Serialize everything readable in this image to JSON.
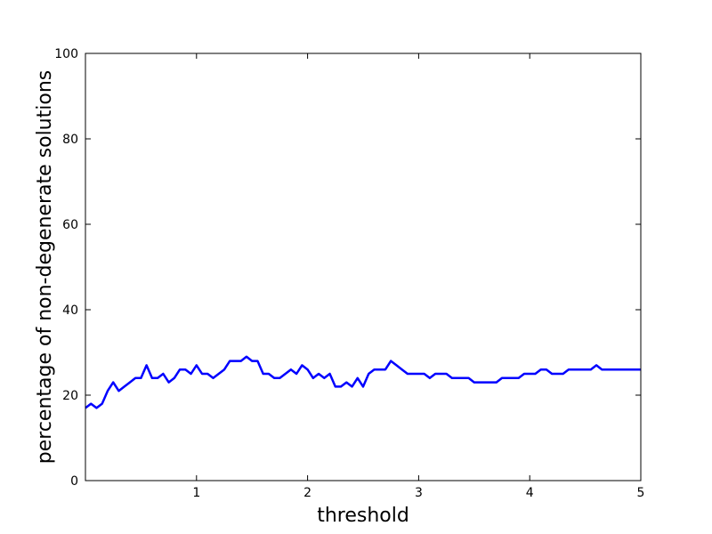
{
  "chart_data": {
    "type": "line",
    "xlabel": "threshold",
    "ylabel": "percentage of non-degenerate solutions",
    "xlim": [
      0,
      5
    ],
    "ylim": [
      0,
      100
    ],
    "xticks": [
      1,
      2,
      3,
      4,
      5
    ],
    "xtick_labels": [
      "1",
      "2",
      "3",
      "4",
      "5"
    ],
    "yticks": [
      0,
      20,
      40,
      60,
      80,
      100
    ],
    "ytick_labels": [
      "0",
      "20",
      "40",
      "60",
      "80",
      "100"
    ],
    "grid": false,
    "series": [
      {
        "color": "#0000ff",
        "x": [
          0.0,
          0.05,
          0.1,
          0.15,
          0.2,
          0.25,
          0.3,
          0.35,
          0.4,
          0.45,
          0.5,
          0.55,
          0.6,
          0.65,
          0.7,
          0.75,
          0.8,
          0.85,
          0.9,
          0.95,
          1.0,
          1.05,
          1.1,
          1.15,
          1.2,
          1.25,
          1.3,
          1.35,
          1.4,
          1.45,
          1.5,
          1.55,
          1.6,
          1.65,
          1.7,
          1.75,
          1.8,
          1.85,
          1.9,
          1.95,
          2.0,
          2.05,
          2.1,
          2.15,
          2.2,
          2.25,
          2.3,
          2.35,
          2.4,
          2.45,
          2.5,
          2.55,
          2.6,
          2.65,
          2.7,
          2.75,
          2.8,
          2.85,
          2.9,
          2.95,
          3.0,
          3.05,
          3.1,
          3.15,
          3.2,
          3.25,
          3.3,
          3.35,
          3.4,
          3.45,
          3.5,
          3.55,
          3.6,
          3.65,
          3.7,
          3.75,
          3.8,
          3.85,
          3.9,
          3.95,
          4.0,
          4.05,
          4.1,
          4.15,
          4.2,
          4.25,
          4.3,
          4.35,
          4.4,
          4.45,
          4.5,
          4.55,
          4.6,
          4.65,
          4.7,
          4.75,
          4.8,
          4.85,
          4.9,
          4.95,
          5.0
        ],
        "y": [
          17,
          18,
          17,
          18,
          21,
          23,
          21,
          22,
          23,
          24,
          24,
          27,
          24,
          24,
          25,
          23,
          24,
          26,
          26,
          25,
          27,
          25,
          25,
          24,
          25,
          26,
          28,
          28,
          28,
          29,
          28,
          28,
          25,
          25,
          24,
          24,
          25,
          26,
          25,
          27,
          26,
          24,
          25,
          24,
          25,
          22,
          22,
          23,
          22,
          24,
          22,
          25,
          26,
          26,
          26,
          28,
          27,
          26,
          25,
          25,
          25,
          25,
          24,
          25,
          25,
          25,
          24,
          24,
          24,
          24,
          23,
          23,
          23,
          23,
          23,
          24,
          24,
          24,
          24,
          25,
          25,
          25,
          26,
          26,
          25,
          25,
          25,
          26,
          26,
          26,
          26,
          26,
          27,
          26,
          26,
          26,
          26,
          26,
          26,
          26,
          26
        ]
      }
    ]
  }
}
